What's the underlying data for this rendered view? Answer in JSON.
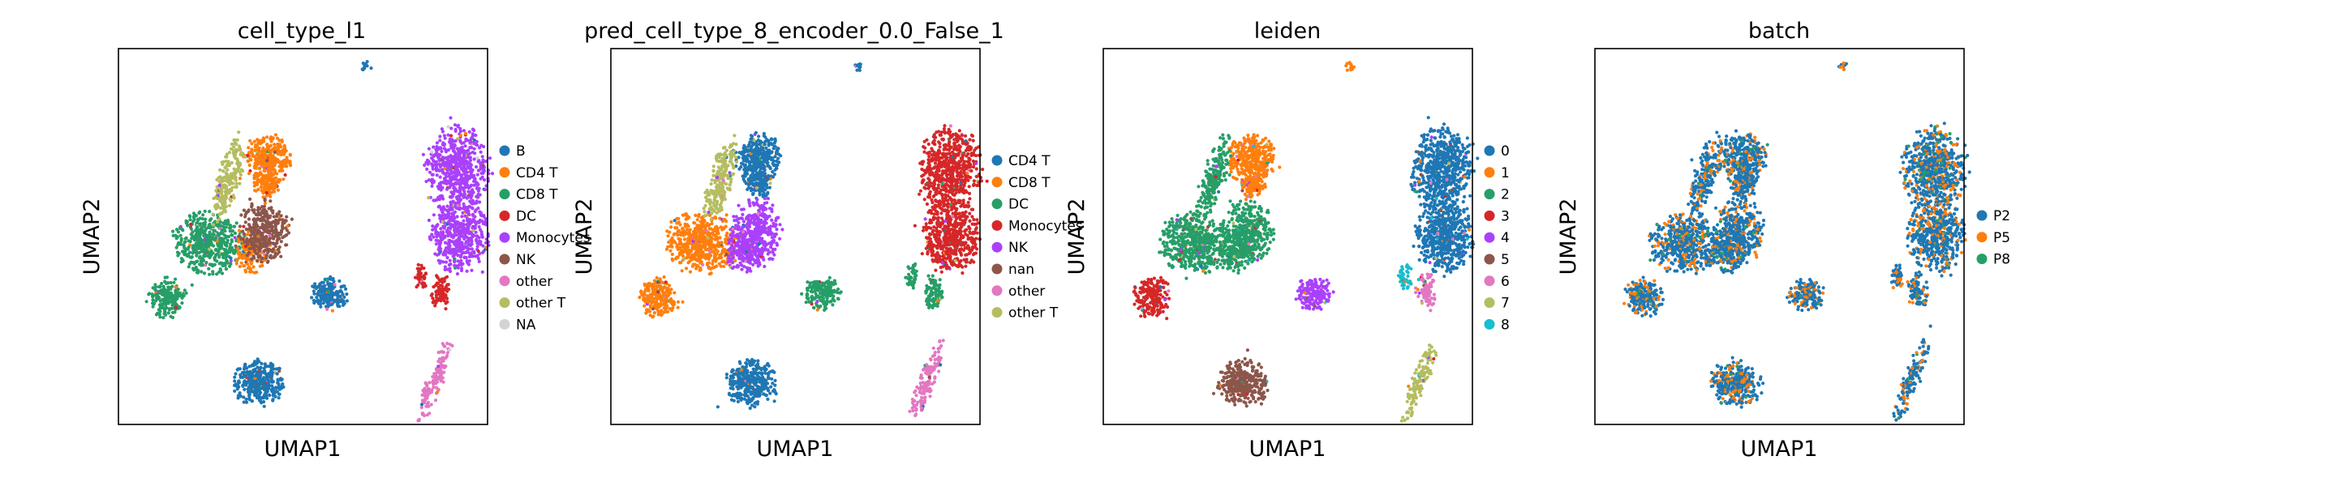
{
  "figure": {
    "background": "#ffffff"
  },
  "chart_data": [
    {
      "type": "scatter",
      "title": "cell_type_l1",
      "xlabel": "UMAP1",
      "ylabel": "UMAP2",
      "grid": false,
      "legend_position": "right",
      "legend": [
        {
          "label": "B",
          "color": "#1f77b4"
        },
        {
          "label": "CD4 T",
          "color": "#ff7f0e"
        },
        {
          "label": "CD8 T",
          "color": "#279e68"
        },
        {
          "label": "DC",
          "color": "#d62728"
        },
        {
          "label": "Monocytes",
          "color": "#aa40fc"
        },
        {
          "label": "NK",
          "color": "#8c564b"
        },
        {
          "label": "other",
          "color": "#e377c2"
        },
        {
          "label": "other T",
          "color": "#b5bd61"
        },
        {
          "label": "NA",
          "color": "#d3d3d3"
        }
      ],
      "clusters": [
        "B",
        "CD4 T",
        "CD4 T",
        "CD8 T",
        "CD8 T",
        "CD4 T",
        "other T",
        "NK",
        "B",
        "B",
        "Monocytes",
        "Monocytes",
        "other",
        "DC",
        "DC"
      ]
    },
    {
      "type": "scatter",
      "title": "pred_cell_type_8_encoder_0.0_False_1",
      "xlabel": "UMAP1",
      "ylabel": "UMAP2",
      "grid": false,
      "legend_position": "right",
      "legend": [
        {
          "label": "CD4 T",
          "color": "#1f77b4"
        },
        {
          "label": "CD8 T",
          "color": "#ff7f0e"
        },
        {
          "label": "DC",
          "color": "#279e68"
        },
        {
          "label": "Monocytes",
          "color": "#d62728"
        },
        {
          "label": "NK",
          "color": "#aa40fc"
        },
        {
          "label": "nan",
          "color": "#8c564b"
        },
        {
          "label": "other",
          "color": "#e377c2"
        },
        {
          "label": "other T",
          "color": "#b5bd61"
        }
      ],
      "clusters": [
        "CD4 T",
        "CD4 T",
        "CD4 T",
        "CD8 T",
        "CD8 T",
        "NK",
        "other T",
        "NK",
        "DC",
        "CD4 T",
        "Monocytes",
        "Monocytes",
        "other",
        "DC",
        "DC"
      ]
    },
    {
      "type": "scatter",
      "title": "leiden",
      "xlabel": "UMAP1",
      "ylabel": "UMAP2",
      "grid": false,
      "legend_position": "right",
      "legend": [
        {
          "label": "0",
          "color": "#1f77b4"
        },
        {
          "label": "1",
          "color": "#ff7f0e"
        },
        {
          "label": "2",
          "color": "#279e68"
        },
        {
          "label": "3",
          "color": "#d62728"
        },
        {
          "label": "4",
          "color": "#aa40fc"
        },
        {
          "label": "5",
          "color": "#8c564b"
        },
        {
          "label": "6",
          "color": "#e377c2"
        },
        {
          "label": "7",
          "color": "#b5bd61"
        },
        {
          "label": "8",
          "color": "#17becf"
        }
      ],
      "clusters": [
        "1",
        "1",
        "1",
        "2",
        "3",
        "2",
        "2",
        "2",
        "4",
        "5",
        "0",
        "0",
        "7",
        "6",
        "8"
      ]
    },
    {
      "type": "scatter",
      "title": "batch",
      "xlabel": "UMAP1",
      "ylabel": "UMAP2",
      "grid": false,
      "legend_position": "right",
      "legend": [
        {
          "label": "P2",
          "color": "#1f77b4"
        },
        {
          "label": "P5",
          "color": "#ff7f0e"
        },
        {
          "label": "P8",
          "color": "#279e68"
        }
      ],
      "clusters": [
        "P2",
        "P2",
        "P2",
        "P2",
        "P2",
        "P2",
        "P2",
        "P2",
        "P2",
        "P2",
        "P2",
        "P2",
        "P2",
        "P2",
        "P2"
      ]
    }
  ]
}
